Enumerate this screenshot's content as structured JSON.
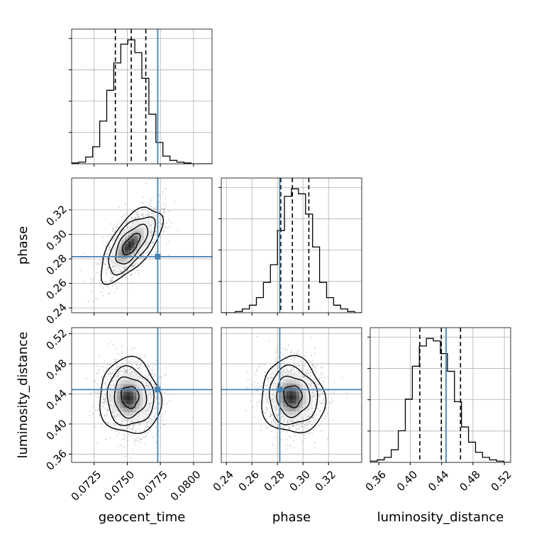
{
  "chart_data": {
    "type": "corner",
    "title": "",
    "parameters": [
      {
        "name": "geocent_time",
        "label": "geocent_time",
        "range": [
          0.0708,
          0.0814
        ],
        "ticks": [
          0.0725,
          0.075,
          0.0775,
          0.08
        ],
        "tick_labels": [
          "0.0725",
          "0.0750",
          "0.0775",
          "0.0800"
        ],
        "truth": 0.0773,
        "quantiles": [
          0.0741,
          0.0753,
          0.0764
        ]
      },
      {
        "name": "phase",
        "label": "phase",
        "range": [
          0.236,
          0.346
        ],
        "ticks": [
          0.24,
          0.26,
          0.28,
          0.3,
          0.32
        ],
        "tick_labels": [
          "0.24",
          "0.26",
          "0.28",
          "0.30",
          "0.32"
        ],
        "truth": 0.2818,
        "quantiles": [
          0.2826,
          0.2917,
          0.3046
        ]
      },
      {
        "name": "luminosity_distance",
        "label": "luminosity_distance",
        "range": [
          0.349,
          0.528
        ],
        "ticks": [
          0.36,
          0.4,
          0.44,
          0.48,
          0.52
        ],
        "tick_labels": [
          "0.36",
          "0.40",
          "0.44",
          "0.48",
          "0.52"
        ],
        "truth": 0.4457,
        "quantiles": [
          0.4122,
          0.4396,
          0.4641
        ]
      }
    ],
    "histograms": [
      {
        "parameter": "geocent_time",
        "bin_edges_start": 0.0708,
        "bin_width": 0.00053,
        "values": [
          1,
          2,
          8,
          20,
          50,
          86,
          118,
          140,
          145,
          130,
          100,
          58,
          25,
          9,
          4,
          2,
          1,
          0,
          0,
          0
        ]
      },
      {
        "parameter": "phase",
        "bin_edges_start": 0.236,
        "bin_width": 0.0055,
        "values": [
          0,
          0,
          1,
          3,
          6,
          12,
          24,
          38,
          65,
          92,
          98,
          94,
          78,
          52,
          24,
          12,
          6,
          3,
          1,
          0
        ]
      },
      {
        "parameter": "luminosity_distance",
        "bin_edges_start": 0.349,
        "bin_width": 0.00895,
        "values": [
          1,
          2,
          4,
          10,
          25,
          50,
          76,
          92,
          98,
          96,
          86,
          72,
          48,
          28,
          16,
          8,
          4,
          2,
          1,
          0
        ]
      }
    ],
    "joint": [
      {
        "x": "geocent_time",
        "y": "phase",
        "mean": [
          0.0753,
          0.292
        ],
        "std": [
          0.0011,
          0.0145
        ],
        "correlation": 0.65
      },
      {
        "x": "geocent_time",
        "y": "luminosity_distance",
        "mean": [
          0.0752,
          0.436
        ],
        "std": [
          0.0011,
          0.024
        ],
        "correlation": -0.05
      },
      {
        "x": "phase",
        "y": "luminosity_distance",
        "mean": [
          0.292,
          0.437
        ],
        "std": [
          0.0118,
          0.024
        ],
        "correlation": -0.05
      }
    ],
    "grid": true,
    "legend": "none"
  },
  "colors": {
    "truth": "#4682b4",
    "hist": "#000000",
    "quantile": "#000000",
    "grid": "#b0b0b0",
    "scatter": "#9a9a9a"
  }
}
